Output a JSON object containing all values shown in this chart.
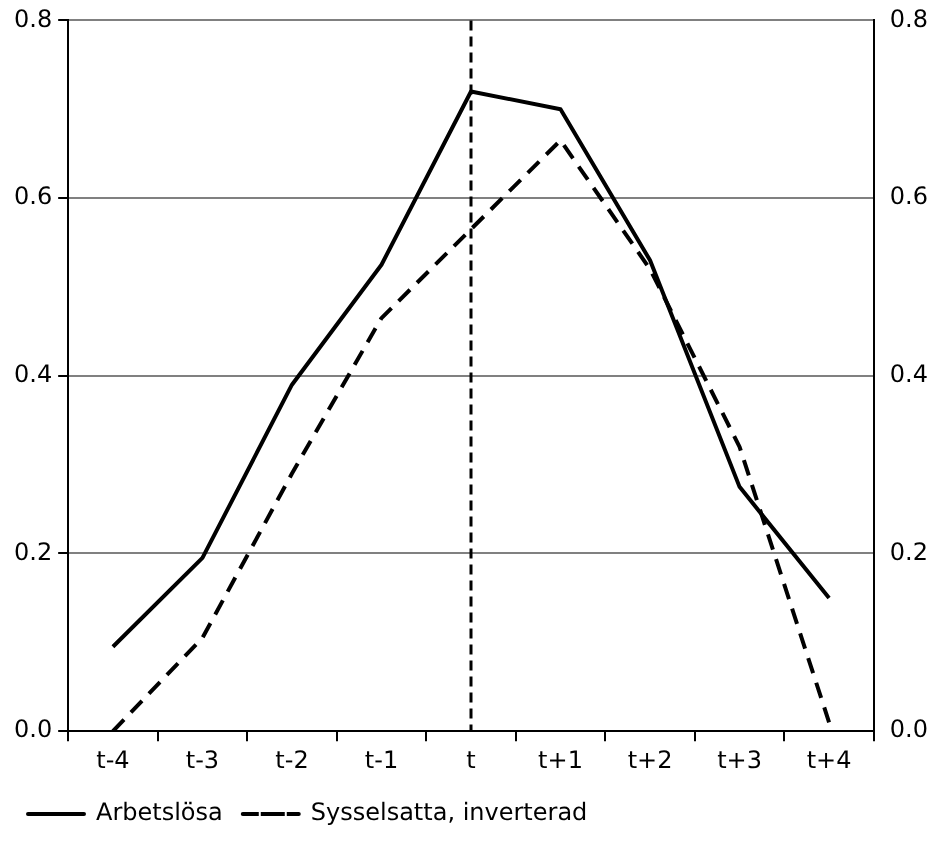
{
  "chart_data": {
    "type": "line",
    "categories": [
      "t-4",
      "t-3",
      "t-2",
      "t-1",
      "t",
      "t+1",
      "t+2",
      "t+3",
      "t+4"
    ],
    "series": [
      {
        "name": "Arbetslösa",
        "color": "#000000",
        "line_style": "solid",
        "values": [
          0.095,
          0.195,
          0.39,
          0.525,
          0.72,
          0.7,
          0.53,
          0.275,
          0.15
        ]
      },
      {
        "name": "Sysselsatta, inverterad",
        "color": "#000000",
        "line_style": "dashed",
        "values": [
          0.0,
          0.105,
          0.29,
          0.465,
          0.565,
          0.665,
          0.52,
          0.32,
          0.01
        ]
      }
    ],
    "ylim": [
      0,
      0.8
    ],
    "yticks": [
      {
        "value": 0,
        "label": "0.0"
      },
      0.2,
      0.4,
      0.6,
      0.8
    ],
    "y2lim": [
      0,
      0.8
    ],
    "y2ticks": [
      {
        "value": 0,
        "label": "0.0"
      },
      0.2,
      0.4,
      0.6,
      0.8
    ],
    "ref_lines": [
      {
        "axis": "x",
        "value": "t",
        "line_style": "dashed",
        "color": "#000000"
      }
    ],
    "grid": "y",
    "legend": "bottom",
    "marker": "none"
  }
}
